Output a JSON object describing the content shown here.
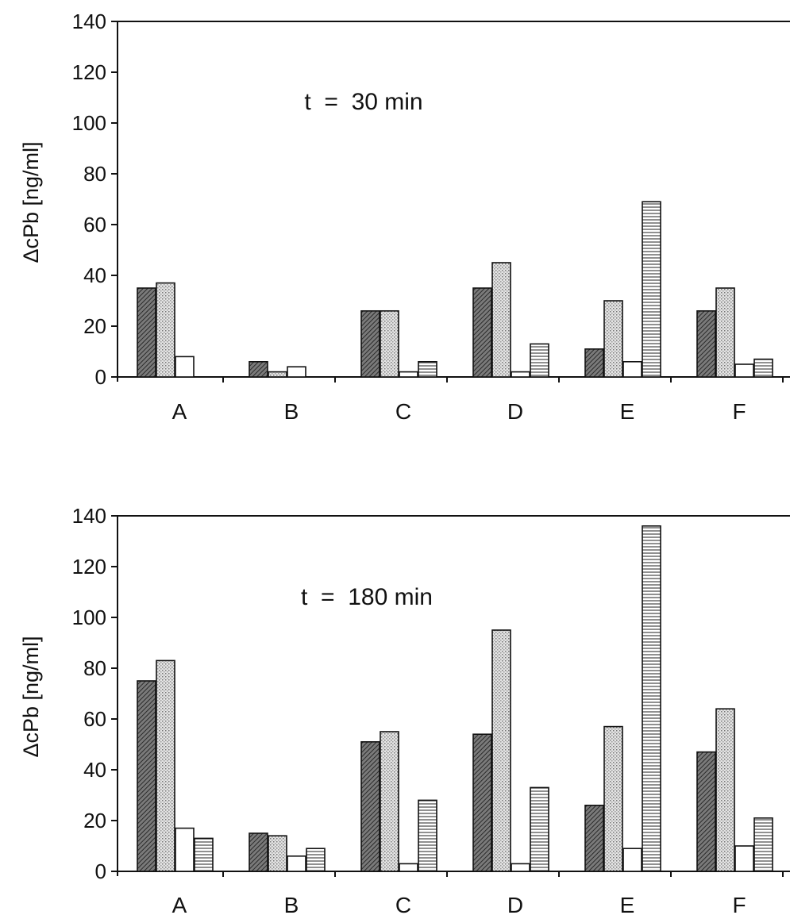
{
  "chart_data": [
    {
      "type": "bar",
      "title": "t  =  30 min",
      "ylabel": "ΔcPb [ng/ml]",
      "ylim": [
        0,
        140
      ],
      "yticks": [
        0,
        20,
        40,
        60,
        80,
        100,
        120,
        140
      ],
      "grid": false,
      "categories": [
        "A",
        "B",
        "C",
        "D",
        "E",
        "F"
      ],
      "series": [
        {
          "pattern": "dark-diagonal",
          "values": [
            35,
            6,
            26,
            35,
            11,
            26
          ]
        },
        {
          "pattern": "light-stipple",
          "values": [
            37,
            2,
            26,
            45,
            30,
            35
          ]
        },
        {
          "pattern": "white",
          "values": [
            8,
            4,
            2,
            2,
            6,
            5
          ]
        },
        {
          "pattern": "horizontal-lines",
          "values": [
            null,
            null,
            6,
            13,
            69,
            7
          ]
        }
      ]
    },
    {
      "type": "bar",
      "title": "t  =  180 min",
      "ylabel": "ΔcPb [ng/ml]",
      "ylim": [
        0,
        140
      ],
      "yticks": [
        0,
        20,
        40,
        60,
        80,
        100,
        120,
        140
      ],
      "grid": false,
      "categories": [
        "A",
        "B",
        "C",
        "D",
        "E",
        "F"
      ],
      "series": [
        {
          "pattern": "dark-diagonal",
          "values": [
            75,
            15,
            51,
            54,
            26,
            47
          ]
        },
        {
          "pattern": "light-stipple",
          "values": [
            83,
            14,
            55,
            95,
            57,
            64
          ]
        },
        {
          "pattern": "white",
          "values": [
            17,
            6,
            3,
            3,
            9,
            10
          ]
        },
        {
          "pattern": "horizontal-lines",
          "values": [
            13,
            9,
            28,
            33,
            136,
            21
          ]
        }
      ]
    }
  ],
  "colors": {
    "ink": "#111111",
    "dark_fill": "#6a6a6a",
    "light_fill": "#d2d2d2",
    "white_fill": "#ffffff",
    "background": "#ffffff"
  }
}
